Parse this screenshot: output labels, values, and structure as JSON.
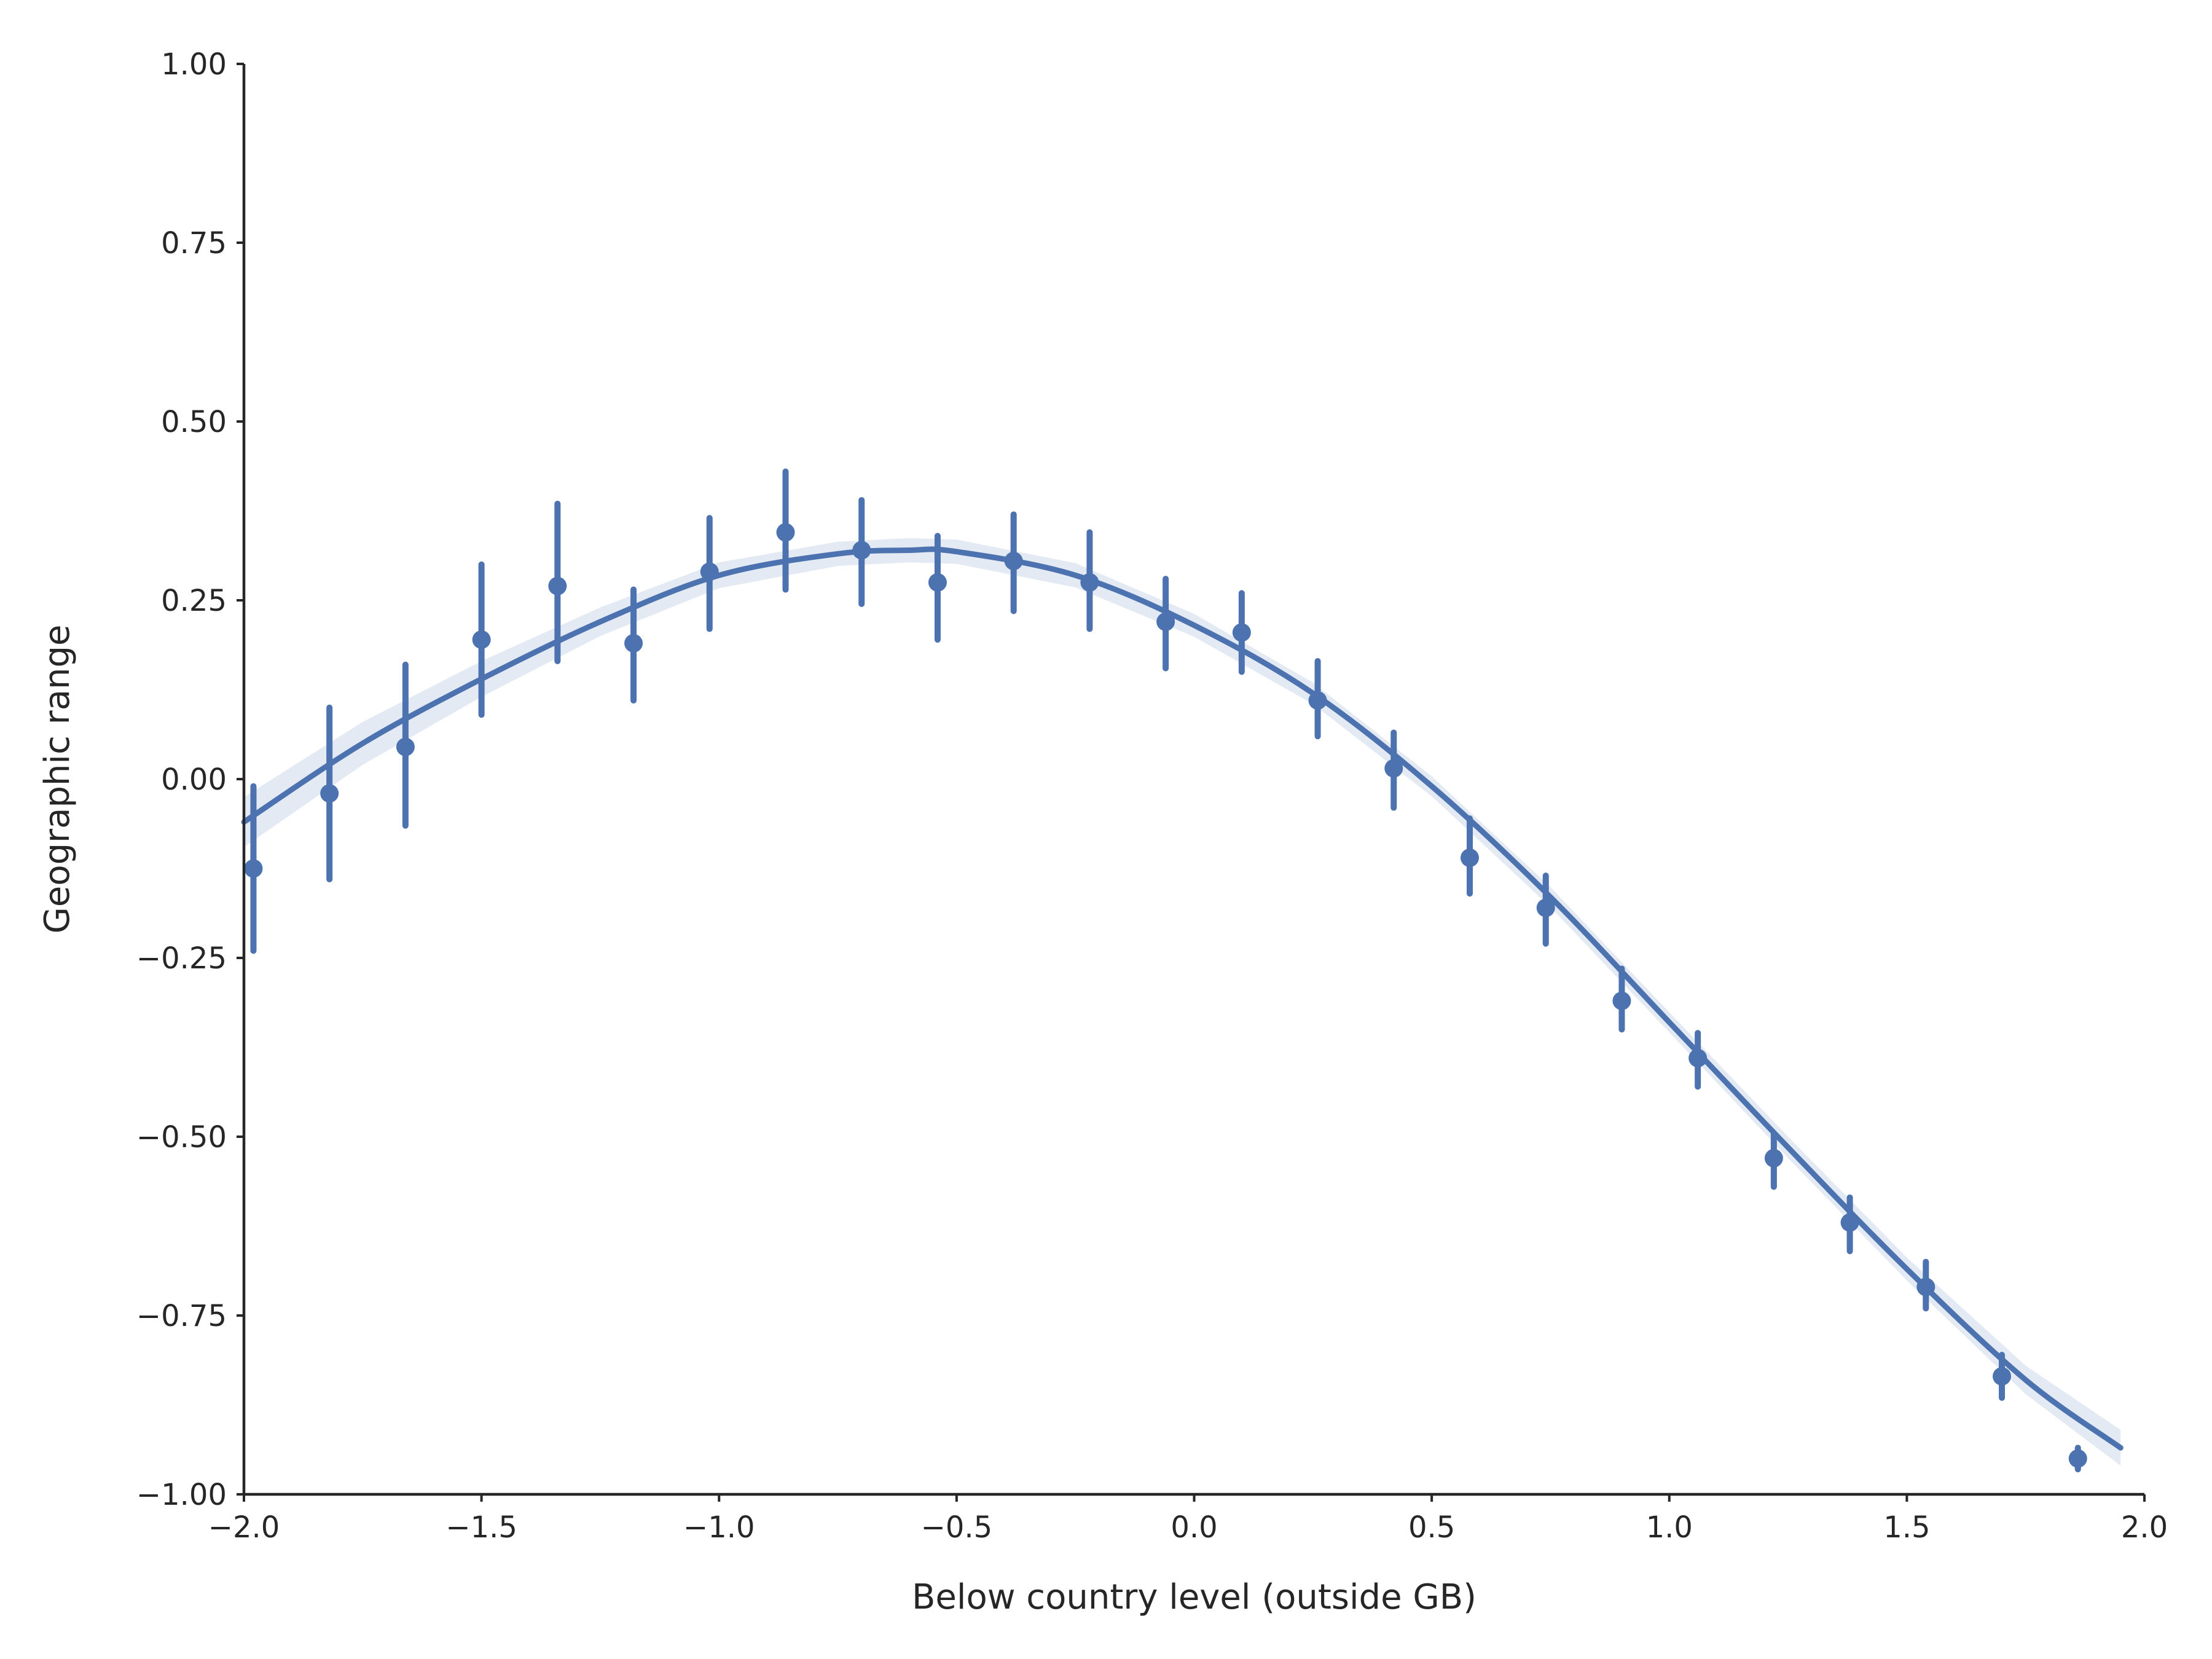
{
  "chart_data": {
    "type": "scatter",
    "xlabel": "Below country level (outside GB)",
    "ylabel": "Geographic range",
    "xlim": [
      -2.0,
      2.0
    ],
    "ylim": [
      -1.0,
      1.0
    ],
    "grid": false,
    "xticks": [
      -2.0,
      -1.5,
      -1.0,
      -0.5,
      0.0,
      0.5,
      1.0,
      1.5,
      2.0
    ],
    "xtick_labels": [
      "−2.0",
      "−1.5",
      "−1.0",
      "−0.5",
      "0.0",
      "0.5",
      "1.0",
      "1.5",
      "2.0"
    ],
    "yticks": [
      1.0,
      0.75,
      0.5,
      0.25,
      0.0,
      -0.25,
      -0.5,
      -0.75,
      -1.0
    ],
    "ytick_labels": [
      "1.00",
      "0.75",
      "0.50",
      "0.25",
      "0.00",
      "−0.25",
      "−0.50",
      "−0.75",
      "−1.00"
    ],
    "colors": {
      "series": "#4c72b0",
      "axes": "#262626"
    },
    "points": [
      {
        "x": -1.98,
        "y": -0.125,
        "lo": -0.24,
        "hi": -0.01
      },
      {
        "x": -1.82,
        "y": -0.02,
        "lo": -0.14,
        "hi": 0.1
      },
      {
        "x": -1.66,
        "y": 0.045,
        "lo": -0.065,
        "hi": 0.16
      },
      {
        "x": -1.5,
        "y": 0.195,
        "lo": 0.09,
        "hi": 0.3
      },
      {
        "x": -1.34,
        "y": 0.27,
        "lo": 0.165,
        "hi": 0.385
      },
      {
        "x": -1.18,
        "y": 0.19,
        "lo": 0.11,
        "hi": 0.265
      },
      {
        "x": -1.02,
        "y": 0.29,
        "lo": 0.21,
        "hi": 0.365
      },
      {
        "x": -0.86,
        "y": 0.345,
        "lo": 0.265,
        "hi": 0.43
      },
      {
        "x": -0.7,
        "y": 0.32,
        "lo": 0.245,
        "hi": 0.39
      },
      {
        "x": -0.54,
        "y": 0.275,
        "lo": 0.195,
        "hi": 0.34
      },
      {
        "x": -0.38,
        "y": 0.305,
        "lo": 0.235,
        "hi": 0.37
      },
      {
        "x": -0.22,
        "y": 0.275,
        "lo": 0.21,
        "hi": 0.345
      },
      {
        "x": -0.06,
        "y": 0.22,
        "lo": 0.155,
        "hi": 0.28
      },
      {
        "x": 0.1,
        "y": 0.205,
        "lo": 0.15,
        "hi": 0.26
      },
      {
        "x": 0.26,
        "y": 0.11,
        "lo": 0.06,
        "hi": 0.165
      },
      {
        "x": 0.42,
        "y": 0.015,
        "lo": -0.04,
        "hi": 0.065
      },
      {
        "x": 0.58,
        "y": -0.11,
        "lo": -0.16,
        "hi": -0.055
      },
      {
        "x": 0.74,
        "y": -0.18,
        "lo": -0.23,
        "hi": -0.135
      },
      {
        "x": 0.9,
        "y": -0.31,
        "lo": -0.35,
        "hi": -0.265
      },
      {
        "x": 1.06,
        "y": -0.39,
        "lo": -0.43,
        "hi": -0.355
      },
      {
        "x": 1.22,
        "y": -0.53,
        "lo": -0.57,
        "hi": -0.495
      },
      {
        "x": 1.38,
        "y": -0.62,
        "lo": -0.66,
        "hi": -0.585
      },
      {
        "x": 1.54,
        "y": -0.71,
        "lo": -0.74,
        "hi": -0.675
      },
      {
        "x": 1.7,
        "y": -0.835,
        "lo": -0.865,
        "hi": -0.805
      },
      {
        "x": 1.86,
        "y": -0.95,
        "lo": -0.965,
        "hi": -0.935
      }
    ],
    "fit": {
      "type": "polynomial",
      "x": [
        -2.0,
        -1.75,
        -1.5,
        -1.25,
        -1.0,
        -0.75,
        -0.6,
        -0.5,
        -0.25,
        0.0,
        0.25,
        0.5,
        0.75,
        1.0,
        1.25,
        1.5,
        1.75,
        1.95
      ],
      "y": [
        -0.06,
        0.05,
        0.14,
        0.22,
        0.285,
        0.315,
        0.32,
        0.318,
        0.285,
        0.215,
        0.12,
        -0.01,
        -0.165,
        -0.34,
        -0.515,
        -0.685,
        -0.84,
        -0.935
      ],
      "ci_halfwidth": [
        0.035,
        0.03,
        0.025,
        0.02,
        0.018,
        0.017,
        0.017,
        0.017,
        0.017,
        0.016,
        0.015,
        0.014,
        0.014,
        0.014,
        0.015,
        0.016,
        0.02,
        0.025
      ]
    }
  }
}
